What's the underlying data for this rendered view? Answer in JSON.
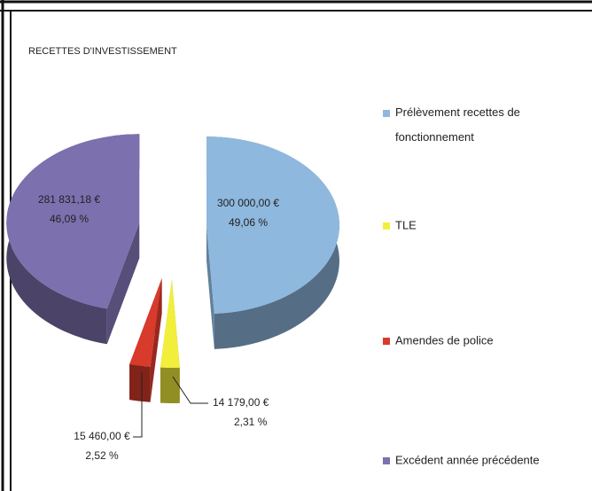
{
  "chart_data": {
    "type": "pie",
    "title": "RECETTES    D'INVESTISSEMENT",
    "categories": [
      "Prélèvement recettes de fonctionnement",
      "TLE",
      "Amendes de police",
      "Excédent année précédente"
    ],
    "values": [
      300000,
      14179,
      15460,
      281831.18
    ],
    "value_labels": [
      "300 000,00 €",
      "14 179,00 €",
      "15 460,00 €",
      "281 831,18 €"
    ],
    "percents": [
      49.06,
      2.31,
      2.52,
      46.09
    ],
    "percent_labels": [
      "49,06 %",
      "2,31 %",
      "2,52 %",
      "46,09 %"
    ],
    "colors": [
      "#8fb8de",
      "#f2ee3c",
      "#d83a2c",
      "#7d70ae"
    ],
    "legend": "right"
  }
}
